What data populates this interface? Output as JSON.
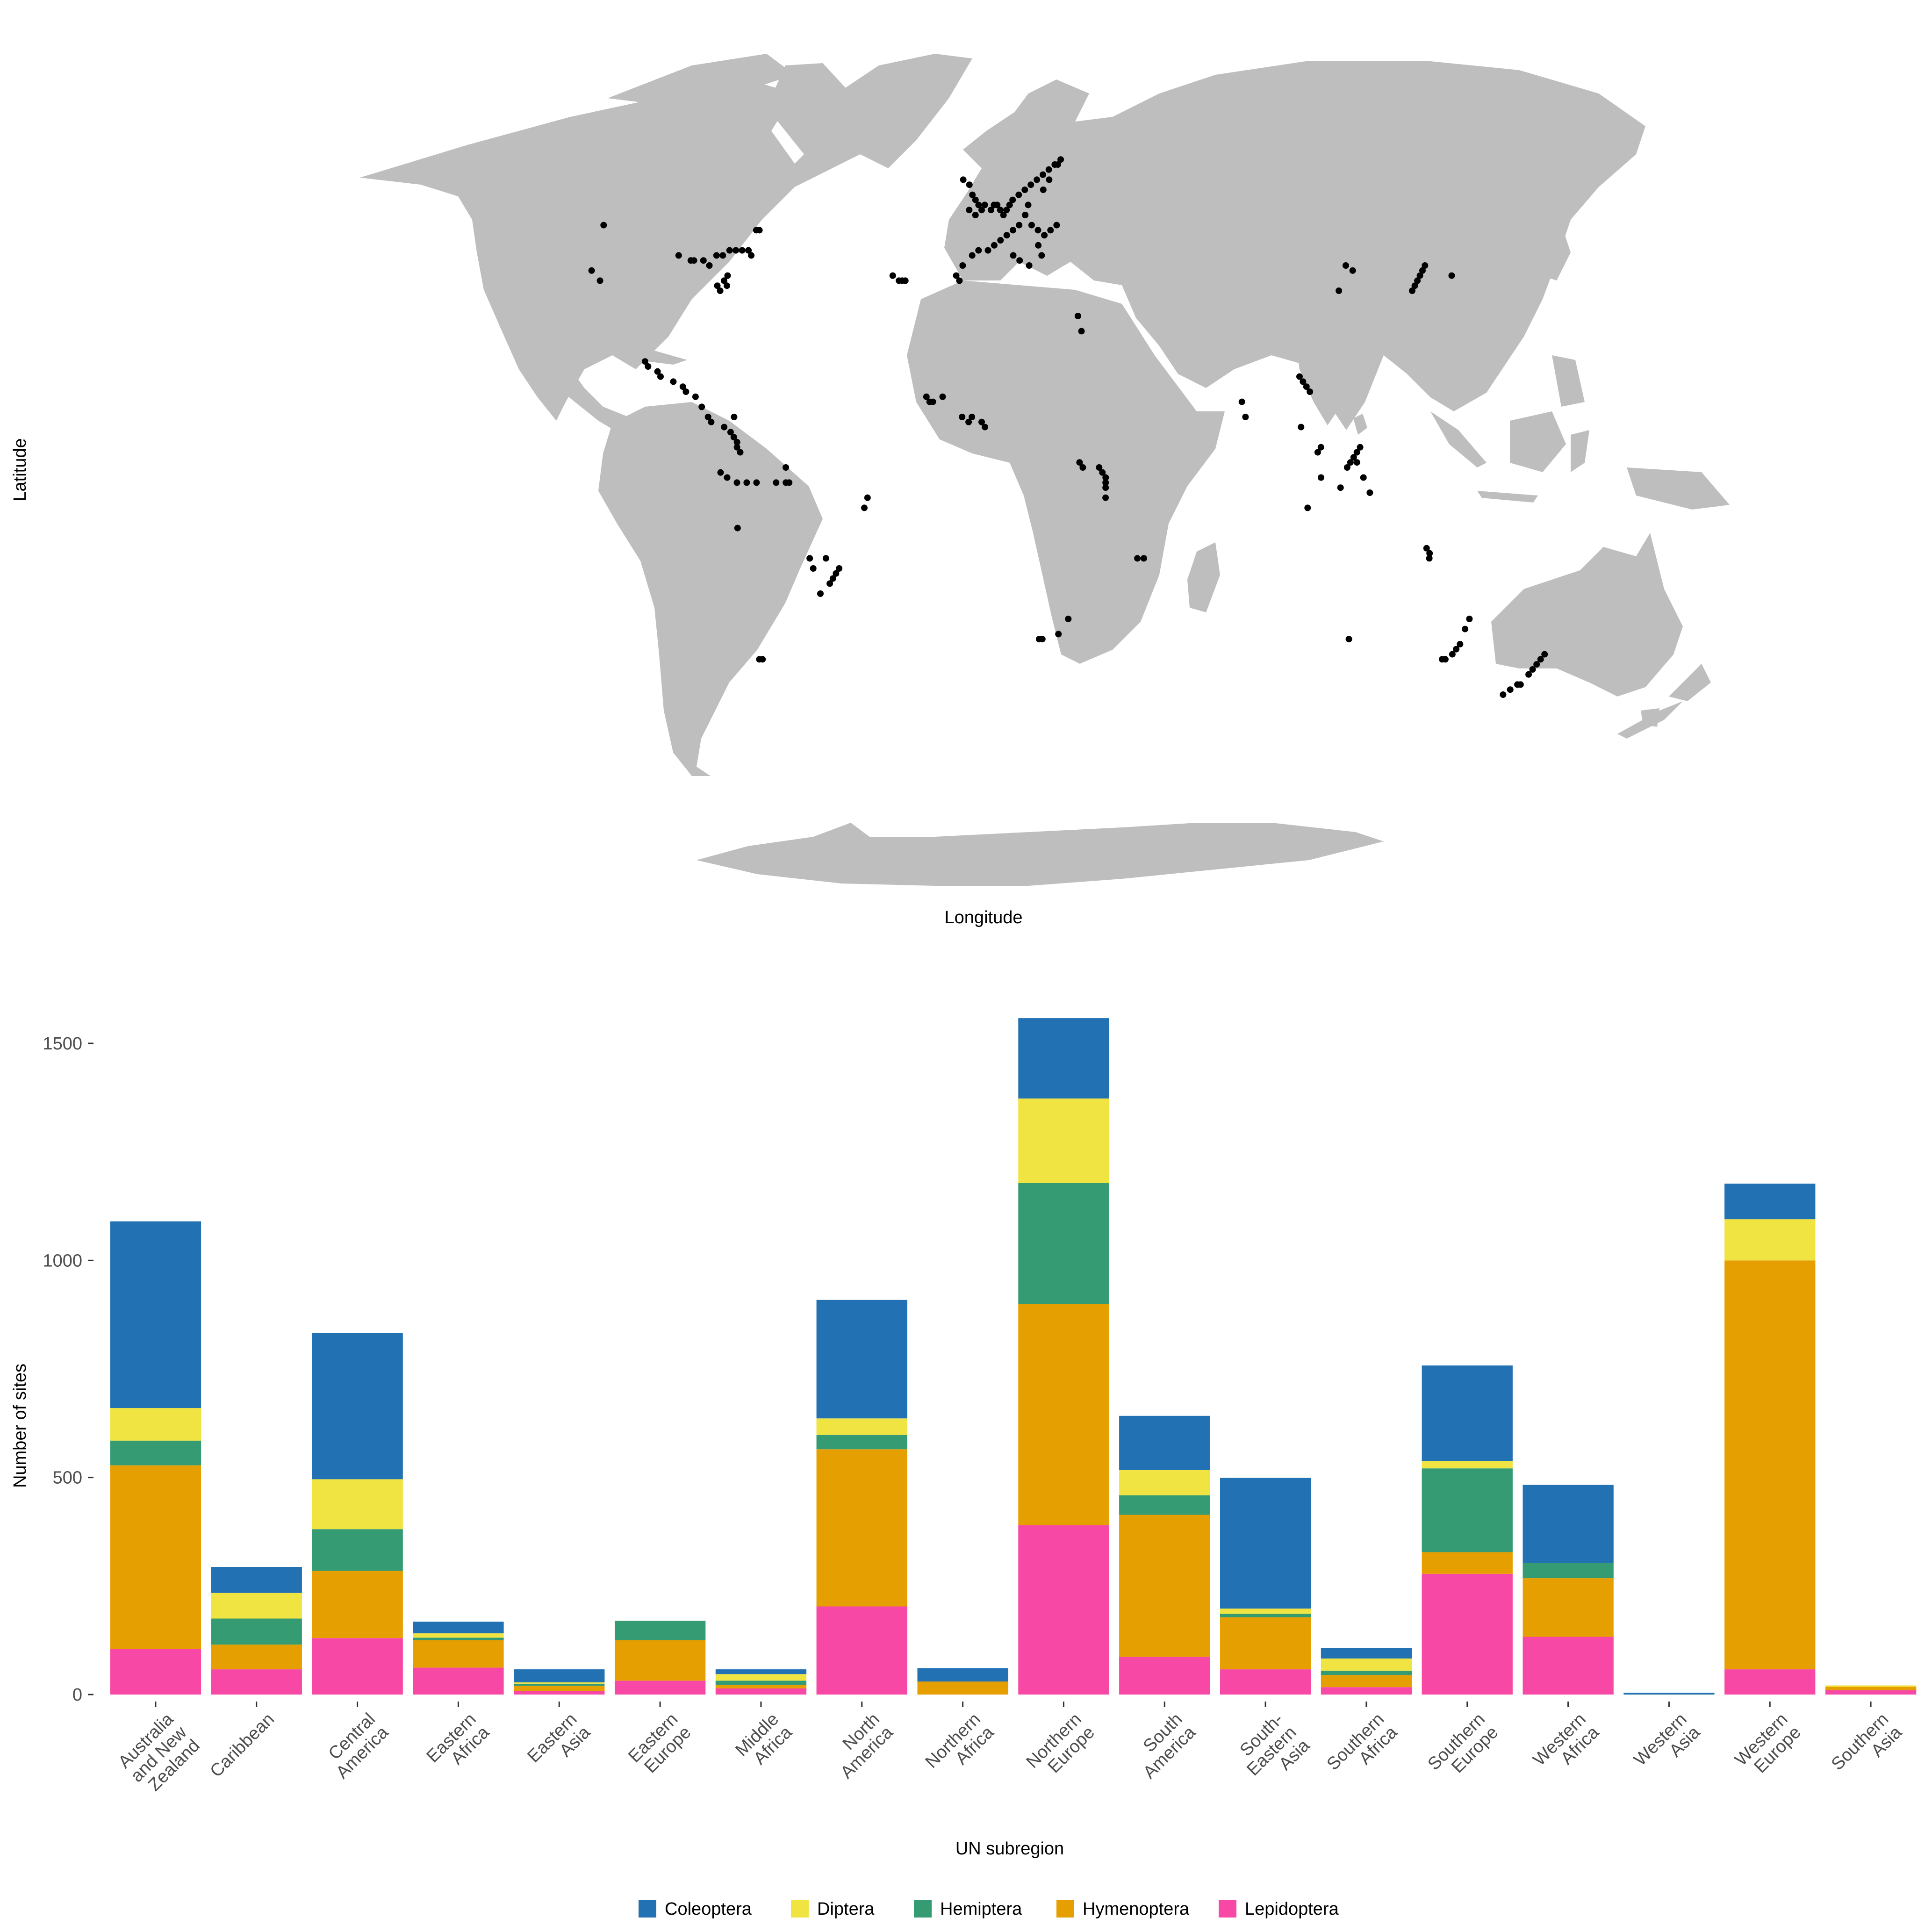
{
  "map": {
    "xlabel": "Longitude",
    "ylabel": "Latitude",
    "land_color": "#BEBEBE",
    "point_color": "#000000",
    "site_points_lonlat": [
      [
        -123,
        39
      ],
      [
        -120,
        37
      ],
      [
        -121,
        48
      ],
      [
        -96,
        42
      ],
      [
        -92,
        41
      ],
      [
        -91,
        41
      ],
      [
        -88,
        41
      ],
      [
        -86,
        40
      ],
      [
        -84,
        42
      ],
      [
        -82,
        42
      ],
      [
        -80,
        43
      ],
      [
        -78,
        43
      ],
      [
        -76,
        43
      ],
      [
        -74,
        43
      ],
      [
        -73,
        42
      ],
      [
        -72,
        47
      ],
      [
        -71,
        47
      ],
      [
        -80,
        38
      ],
      [
        -81,
        37
      ],
      [
        -83,
        36
      ],
      [
        -82,
        35
      ],
      [
        -80,
        36
      ],
      [
        -104,
        21
      ],
      [
        -103,
        20
      ],
      [
        -100,
        19
      ],
      [
        -99,
        18
      ],
      [
        -95,
        17
      ],
      [
        -92,
        16
      ],
      [
        -91,
        15
      ],
      [
        -88,
        14
      ],
      [
        -86,
        12
      ],
      [
        -84,
        10
      ],
      [
        -83,
        9
      ],
      [
        -79,
        8
      ],
      [
        -77,
        7
      ],
      [
        -76,
        6
      ],
      [
        -75,
        5
      ],
      [
        -75,
        4
      ],
      [
        -74,
        3
      ],
      [
        -76,
        10
      ],
      [
        -80,
        -1
      ],
      [
        -78,
        -2
      ],
      [
        -75,
        -3
      ],
      [
        -72,
        -3
      ],
      [
        -69,
        -3
      ],
      [
        -63,
        -3
      ],
      [
        -60,
        -3
      ],
      [
        -59,
        -3
      ],
      [
        -60,
        0
      ],
      [
        -75,
        -12
      ],
      [
        -35,
        -6
      ],
      [
        -36,
        -8
      ],
      [
        -53,
        -18
      ],
      [
        -52,
        -20
      ],
      [
        -48,
        -18
      ],
      [
        -47,
        -23
      ],
      [
        -46,
        -22
      ],
      [
        -45,
        -21
      ],
      [
        -44,
        -20
      ],
      [
        -50,
        -25
      ],
      [
        -70,
        -38
      ],
      [
        -69,
        -38
      ],
      [
        -28,
        38
      ],
      [
        -26,
        37
      ],
      [
        -25,
        37
      ],
      [
        -24,
        37
      ],
      [
        -6,
        57
      ],
      [
        -4,
        56
      ],
      [
        -3,
        54
      ],
      [
        -2,
        53
      ],
      [
        -1,
        52
      ],
      [
        0,
        51
      ],
      [
        1,
        52
      ],
      [
        -2,
        50
      ],
      [
        -4,
        51
      ],
      [
        3,
        51
      ],
      [
        4,
        52
      ],
      [
        5,
        52
      ],
      [
        6,
        51
      ],
      [
        7,
        50
      ],
      [
        8,
        51
      ],
      [
        9,
        52
      ],
      [
        10,
        53
      ],
      [
        12,
        54
      ],
      [
        14,
        55
      ],
      [
        16,
        56
      ],
      [
        18,
        57
      ],
      [
        20,
        58
      ],
      [
        22,
        59
      ],
      [
        24,
        60
      ],
      [
        26,
        61
      ],
      [
        25,
        60
      ],
      [
        22,
        57
      ],
      [
        20,
        55
      ],
      [
        15,
        52
      ],
      [
        14,
        50
      ],
      [
        16,
        48
      ],
      [
        18,
        47
      ],
      [
        20,
        46
      ],
      [
        22,
        47
      ],
      [
        24,
        48
      ],
      [
        12,
        48
      ],
      [
        10,
        47
      ],
      [
        8,
        46
      ],
      [
        6,
        45
      ],
      [
        4,
        44
      ],
      [
        2,
        43
      ],
      [
        -1,
        43
      ],
      [
        -3,
        42
      ],
      [
        -6,
        40
      ],
      [
        -8,
        38
      ],
      [
        -7,
        37
      ],
      [
        10,
        42
      ],
      [
        12,
        41
      ],
      [
        15,
        40
      ],
      [
        18,
        44
      ],
      [
        19,
        42
      ],
      [
        30,
        30
      ],
      [
        31,
        27
      ],
      [
        -17,
        14
      ],
      [
        -16,
        13
      ],
      [
        -15,
        13
      ],
      [
        -12,
        14
      ],
      [
        -6,
        10
      ],
      [
        -4,
        9
      ],
      [
        -3,
        10
      ],
      [
        0,
        9
      ],
      [
        1,
        8
      ],
      [
        30,
        1
      ],
      [
        31,
        0
      ],
      [
        36,
        0
      ],
      [
        37,
        -1
      ],
      [
        38,
        -2
      ],
      [
        38,
        -3
      ],
      [
        38,
        -4
      ],
      [
        38,
        -6
      ],
      [
        48,
        -18
      ],
      [
        50,
        -18
      ],
      [
        18,
        -34
      ],
      [
        19,
        -34
      ],
      [
        24,
        -33
      ],
      [
        27,
        -30
      ],
      [
        80,
        13
      ],
      [
        81,
        10
      ],
      [
        98,
        18
      ],
      [
        99,
        17
      ],
      [
        100,
        16
      ],
      [
        101,
        15
      ],
      [
        98,
        8
      ],
      [
        104,
        4
      ],
      [
        103,
        3
      ],
      [
        104,
        -2
      ],
      [
        110,
        -4
      ],
      [
        112,
        0
      ],
      [
        113,
        1
      ],
      [
        114,
        2
      ],
      [
        115,
        3
      ],
      [
        116,
        4
      ],
      [
        115,
        1
      ],
      [
        117,
        -2
      ],
      [
        119,
        -5
      ],
      [
        100,
        -8
      ],
      [
        115,
        40
      ],
      [
        117,
        39
      ],
      [
        112,
        35
      ],
      [
        136,
        36
      ],
      [
        137,
        37
      ],
      [
        138,
        38
      ],
      [
        139,
        39
      ],
      [
        140,
        40
      ],
      [
        135,
        35
      ],
      [
        148,
        38
      ],
      [
        115,
        -34
      ],
      [
        137,
        -16
      ],
      [
        138,
        -17
      ],
      [
        138,
        -18
      ],
      [
        151,
        -32
      ],
      [
        152,
        -30
      ],
      [
        150,
        -35
      ],
      [
        149,
        -36
      ],
      [
        148,
        -37
      ],
      [
        145,
        -38
      ],
      [
        146,
        -38
      ],
      [
        166,
        -45
      ],
      [
        168,
        -44
      ],
      [
        170,
        -43
      ],
      [
        171,
        -43
      ],
      [
        173,
        -41
      ],
      [
        174,
        -40
      ],
      [
        175,
        -39
      ],
      [
        176,
        -38
      ],
      [
        177,
        -37
      ]
    ]
  },
  "chart_data": {
    "type": "bar",
    "stacked": true,
    "categories": [
      "Australia and New Zealand",
      "Caribbean",
      "Central America",
      "Eastern Africa",
      "Eastern Asia",
      "Eastern Europe",
      "Middle Africa",
      "North America",
      "Northern Africa",
      "Northern Europe",
      "South America",
      "South-Eastern Asia",
      "Southern Africa",
      "Southern Europe",
      "Western Africa",
      "Western Asia",
      "Western Europe",
      "Southern Asia"
    ],
    "category_lines": [
      [
        "Australia",
        "and New",
        "Zealand"
      ],
      [
        "Caribbean"
      ],
      [
        "Central",
        "America"
      ],
      [
        "Eastern",
        "Africa"
      ],
      [
        "Eastern",
        "Asia"
      ],
      [
        "Eastern",
        "Europe"
      ],
      [
        "Middle",
        "Africa"
      ],
      [
        "North",
        "America"
      ],
      [
        "Northern",
        "Africa"
      ],
      [
        "Northern",
        "Europe"
      ],
      [
        "South",
        "America"
      ],
      [
        "South-",
        "Eastern",
        "Asia"
      ],
      [
        "Southern",
        "Africa"
      ],
      [
        "Southern",
        "Europe"
      ],
      [
        "Western",
        "Africa"
      ],
      [
        "Western",
        "Asia"
      ],
      [
        "Western",
        "Europe"
      ],
      [
        "Southern",
        "Asia"
      ]
    ],
    "series": [
      {
        "name": "Lepidoptera",
        "color": "#F748A5",
        "values": [
          105,
          58,
          130,
          62,
          8,
          32,
          14,
          203,
          0,
          390,
          87,
          58,
          17,
          278,
          133,
          0,
          58,
          10
        ]
      },
      {
        "name": "Hymenoptera",
        "color": "#E69F00",
        "values": [
          423,
          57,
          155,
          63,
          12,
          93,
          8,
          362,
          30,
          510,
          327,
          120,
          28,
          50,
          135,
          0,
          942,
          8
        ]
      },
      {
        "name": "Hemiptera",
        "color": "#359B73",
        "values": [
          57,
          60,
          96,
          6,
          5,
          45,
          10,
          33,
          0,
          278,
          45,
          8,
          10,
          193,
          35,
          0,
          0,
          0
        ]
      },
      {
        "name": "Diptera",
        "color": "#F0E442",
        "values": [
          75,
          59,
          115,
          10,
          3,
          0,
          15,
          38,
          0,
          195,
          58,
          12,
          28,
          17,
          0,
          0,
          95,
          3
        ]
      },
      {
        "name": "Coleoptera",
        "color": "#2271B2",
        "values": [
          430,
          60,
          337,
          27,
          30,
          0,
          11,
          273,
          31,
          185,
          125,
          301,
          24,
          220,
          180,
          4,
          82,
          0
        ]
      }
    ],
    "legend_order": [
      "Coleoptera",
      "Diptera",
      "Hemiptera",
      "Hymenoptera",
      "Lepidoptera"
    ],
    "xlabel": "UN subregion",
    "ylabel": "Number of sites",
    "ylim": [
      0,
      1560
    ],
    "yticks": [
      0,
      500,
      1000,
      1500
    ],
    "legend_position": "bottom"
  }
}
